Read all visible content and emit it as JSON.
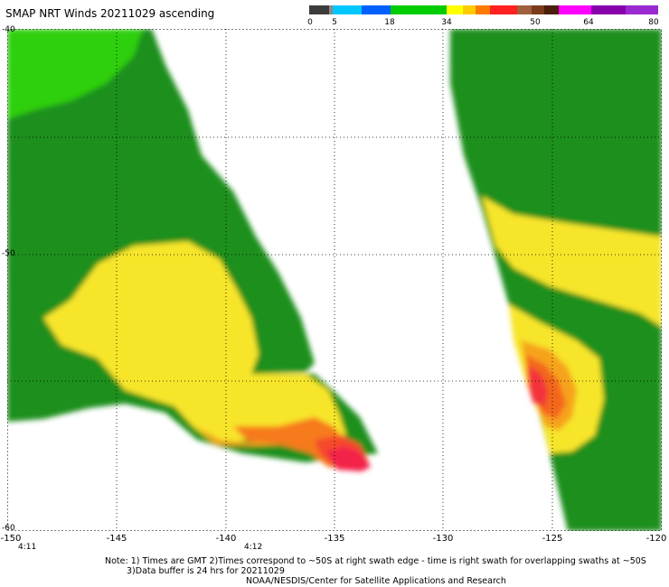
{
  "title": "SMAP NRT Winds 20211029 ascending",
  "colorbar": {
    "ticks": [
      "0",
      "5",
      "18",
      "34",
      "50",
      "64",
      "80"
    ],
    "colors": [
      "#3c3c3c",
      "#8a8a8a",
      "#00ccff",
      "#0060ff",
      "#00cc00",
      "#00cc00",
      "#00cc00",
      "#ffff00",
      "#ff9900",
      "#ff3030",
      "#9b5e3c",
      "#5a2a10",
      "#ff00ff",
      "#8800aa"
    ]
  },
  "axes": {
    "lat_ticks": [
      "-40",
      "",
      "-50",
      "",
      "-60"
    ],
    "lon_ticks": [
      "-150",
      "-145",
      "-140",
      "-135",
      "-130",
      "-125",
      "-120"
    ]
  },
  "times": [
    "4:11",
    "4:12"
  ],
  "notes": {
    "line1": "Note: 1) Times are GMT 2)Times correspond to ~50S at right swath edge - time is right swath for overlapping swaths at ~50S",
    "line2": "3)Data buffer is 24 hrs for 20211029",
    "line3": "NOAA/NESDIS/Center for Satellite Applications and Research"
  }
}
